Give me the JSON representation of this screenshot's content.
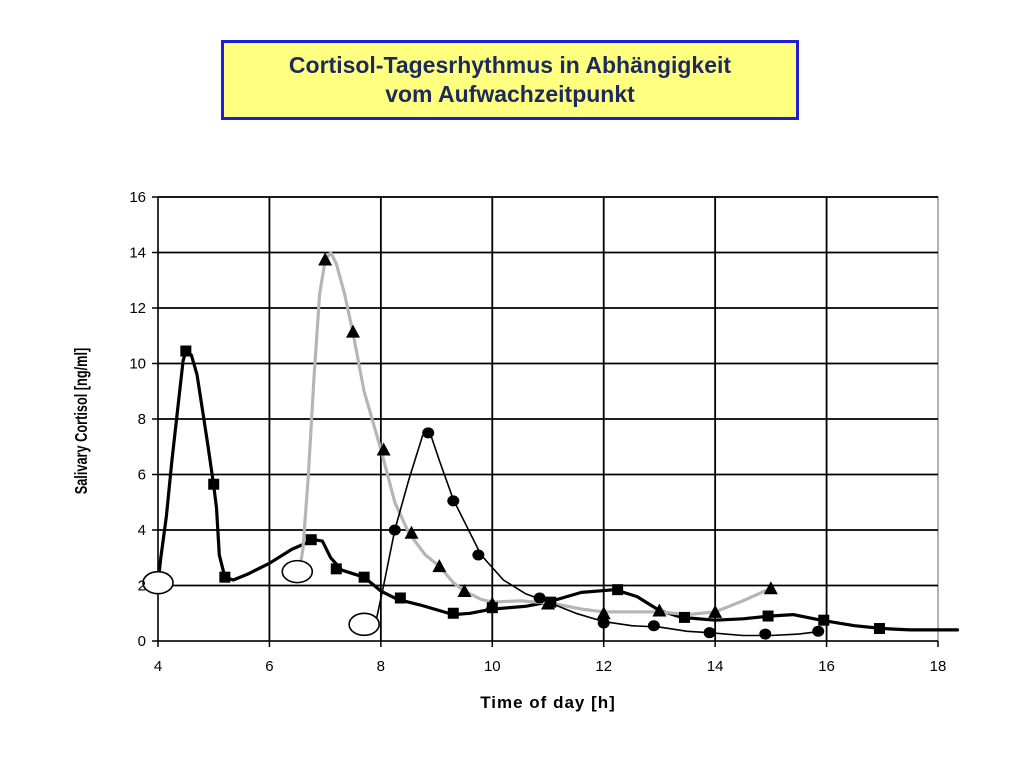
{
  "title": {
    "line1": "Cortisol-Tagesrhythmus in Abhängigkeit",
    "line2": "vom Aufwachzeitpunkt"
  },
  "colors": {
    "title_border": "#1f1fd6",
    "title_bg": "#ffff80",
    "title_text": "#1c2a5e",
    "series": "#000000",
    "dotted_series": "#b5b5b5"
  },
  "chart_data": {
    "type": "line",
    "xlabel": "Time of day [h]",
    "ylabel": "Salivary Cortisol [ng/ml]",
    "xlim": [
      4,
      18
    ],
    "ylim": [
      0,
      16
    ],
    "xticks": [
      "4",
      "6",
      "8",
      "10",
      "12",
      "14",
      "16",
      "18"
    ],
    "yticks": [
      "0",
      "2",
      "4",
      "6",
      "8",
      "10",
      "12",
      "14",
      "16"
    ],
    "grid": true,
    "series": [
      {
        "marker": "square",
        "style": "thick",
        "curve": [
          [
            4.0,
            2.1
          ],
          [
            4.05,
            3.0
          ],
          [
            4.15,
            4.5
          ],
          [
            4.25,
            6.5
          ],
          [
            4.35,
            8.3
          ],
          [
            4.45,
            10.1
          ],
          [
            4.5,
            10.45
          ],
          [
            4.6,
            10.3
          ],
          [
            4.7,
            9.6
          ],
          [
            4.8,
            8.3
          ],
          [
            4.9,
            7.0
          ],
          [
            5.0,
            5.6
          ],
          [
            5.05,
            4.8
          ],
          [
            5.1,
            3.1
          ],
          [
            5.2,
            2.3
          ],
          [
            5.35,
            2.2
          ],
          [
            5.6,
            2.4
          ],
          [
            6.0,
            2.8
          ],
          [
            6.4,
            3.3
          ],
          [
            6.8,
            3.65
          ],
          [
            6.95,
            3.6
          ],
          [
            7.1,
            3.0
          ],
          [
            7.3,
            2.55
          ],
          [
            7.7,
            2.3
          ],
          [
            8.0,
            1.8
          ],
          [
            8.3,
            1.5
          ],
          [
            8.7,
            1.3
          ],
          [
            9.3,
            0.95
          ],
          [
            9.6,
            1.0
          ],
          [
            10.0,
            1.15
          ],
          [
            10.6,
            1.25
          ],
          [
            11.0,
            1.4
          ],
          [
            11.6,
            1.75
          ],
          [
            12.2,
            1.85
          ],
          [
            12.6,
            1.6
          ],
          [
            13.0,
            1.1
          ],
          [
            13.4,
            0.85
          ],
          [
            14.0,
            0.75
          ],
          [
            14.5,
            0.8
          ],
          [
            15.0,
            0.9
          ],
          [
            15.4,
            0.95
          ],
          [
            15.9,
            0.75
          ],
          [
            16.5,
            0.55
          ],
          [
            17.0,
            0.45
          ],
          [
            17.5,
            0.4
          ],
          [
            18.35,
            0.4
          ]
        ],
        "points": [
          [
            4.5,
            10.45
          ],
          [
            5.0,
            5.65
          ],
          [
            5.2,
            2.3
          ],
          [
            6.75,
            3.65
          ],
          [
            7.2,
            2.6
          ],
          [
            7.7,
            2.3
          ],
          [
            8.35,
            1.55
          ],
          [
            9.3,
            1.0
          ],
          [
            10.0,
            1.2
          ],
          [
            11.05,
            1.4
          ],
          [
            12.25,
            1.85
          ],
          [
            13.45,
            0.85
          ],
          [
            14.95,
            0.9
          ],
          [
            15.95,
            0.75
          ],
          [
            16.95,
            0.45
          ]
        ]
      },
      {
        "marker": "triangle",
        "style": "dotted",
        "curve": [
          [
            6.55,
            2.7
          ],
          [
            6.6,
            3.3
          ],
          [
            6.7,
            6.0
          ],
          [
            6.8,
            9.5
          ],
          [
            6.9,
            12.5
          ],
          [
            7.0,
            13.7
          ],
          [
            7.1,
            14.0
          ],
          [
            7.2,
            13.6
          ],
          [
            7.35,
            12.5
          ],
          [
            7.5,
            11.1
          ],
          [
            7.7,
            9.0
          ],
          [
            8.0,
            6.9
          ],
          [
            8.25,
            5.0
          ],
          [
            8.5,
            3.9
          ],
          [
            8.8,
            3.1
          ],
          [
            9.05,
            2.7
          ],
          [
            9.3,
            2.1
          ],
          [
            9.5,
            1.8
          ],
          [
            9.8,
            1.5
          ],
          [
            10.0,
            1.4
          ],
          [
            10.5,
            1.45
          ],
          [
            11.1,
            1.35
          ],
          [
            11.6,
            1.15
          ],
          [
            12.0,
            1.05
          ],
          [
            12.5,
            1.05
          ],
          [
            13.0,
            1.05
          ],
          [
            13.5,
            0.95
          ],
          [
            14.0,
            1.05
          ],
          [
            14.5,
            1.45
          ],
          [
            15.0,
            1.9
          ]
        ],
        "points": [
          [
            7.0,
            13.75
          ],
          [
            7.5,
            11.15
          ],
          [
            8.05,
            6.9
          ],
          [
            8.55,
            3.9
          ],
          [
            9.05,
            2.7
          ],
          [
            9.5,
            1.8
          ],
          [
            10.0,
            1.35
          ],
          [
            11.0,
            1.35
          ],
          [
            12.0,
            1.0
          ],
          [
            13.0,
            1.1
          ],
          [
            14.0,
            1.05
          ],
          [
            15.0,
            1.9
          ]
        ]
      },
      {
        "marker": "circle",
        "style": "thin",
        "curve": [
          [
            7.9,
            0.6
          ],
          [
            8.05,
            2.0
          ],
          [
            8.25,
            4.0
          ],
          [
            8.5,
            5.8
          ],
          [
            8.75,
            7.4
          ],
          [
            8.9,
            7.4
          ],
          [
            9.05,
            6.5
          ],
          [
            9.3,
            5.1
          ],
          [
            9.5,
            4.3
          ],
          [
            9.8,
            3.1
          ],
          [
            10.2,
            2.2
          ],
          [
            10.6,
            1.7
          ],
          [
            11.0,
            1.4
          ],
          [
            11.5,
            1.0
          ],
          [
            12.0,
            0.7
          ],
          [
            12.5,
            0.55
          ],
          [
            13.0,
            0.5
          ],
          [
            13.5,
            0.35
          ],
          [
            13.9,
            0.3
          ],
          [
            14.5,
            0.2
          ],
          [
            15.0,
            0.2
          ],
          [
            15.5,
            0.25
          ],
          [
            15.9,
            0.35
          ]
        ],
        "points": [
          [
            8.25,
            4.0
          ],
          [
            8.85,
            7.5
          ],
          [
            9.3,
            5.05
          ],
          [
            9.75,
            3.1
          ],
          [
            10.85,
            1.55
          ],
          [
            12.0,
            0.65
          ],
          [
            12.9,
            0.55
          ],
          [
            13.9,
            0.3
          ],
          [
            14.9,
            0.25
          ],
          [
            15.85,
            0.35
          ]
        ]
      }
    ],
    "wake_markers": [
      [
        4.0,
        2.1
      ],
      [
        6.5,
        2.5
      ],
      [
        7.7,
        0.6
      ]
    ]
  }
}
